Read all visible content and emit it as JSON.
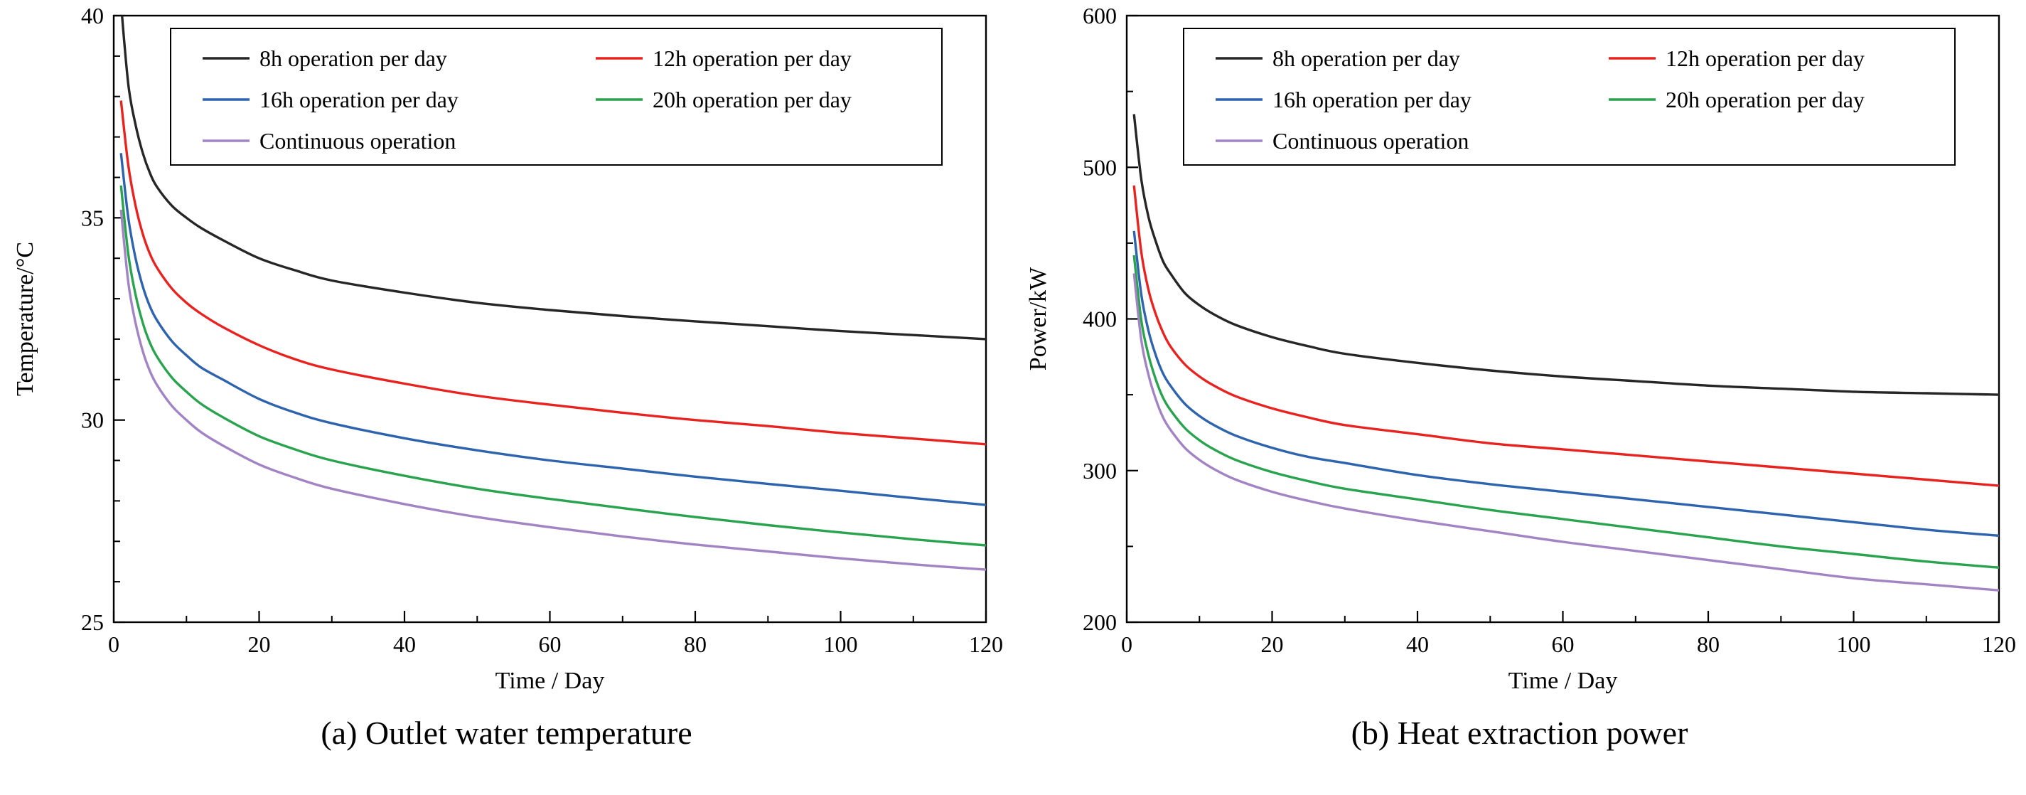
{
  "page": {
    "background": "#ffffff"
  },
  "chart_data": [
    {
      "type": "line",
      "caption": "(a) Outlet water temperature",
      "xlabel": "Time / Day",
      "ylabel": "Temperature/°C",
      "xlim": [
        0,
        120
      ],
      "ylim": [
        25,
        40
      ],
      "x_ticks": [
        0,
        20,
        40,
        60,
        80,
        100,
        120
      ],
      "y_ticks": [
        25,
        30,
        35,
        40
      ],
      "x_minor_step": 10,
      "y_minor_step": 1,
      "grid": false,
      "legend_position": "top-inside",
      "x": [
        1,
        2,
        3,
        4,
        5,
        6,
        8,
        10,
        12,
        15,
        20,
        25,
        30,
        40,
        50,
        60,
        70,
        80,
        90,
        100,
        110,
        120
      ],
      "series": [
        {
          "name": "8h operation per day",
          "color": "#262626",
          "values": [
            40.3,
            38.3,
            37.3,
            36.6,
            36.1,
            35.75,
            35.3,
            35.0,
            34.75,
            34.45,
            34.0,
            33.7,
            33.45,
            33.15,
            32.9,
            32.72,
            32.57,
            32.44,
            32.32,
            32.2,
            32.1,
            32.0
          ]
        },
        {
          "name": "12h operation per day",
          "color": "#e8231f",
          "values": [
            37.9,
            36.3,
            35.3,
            34.6,
            34.1,
            33.75,
            33.25,
            32.9,
            32.63,
            32.3,
            31.85,
            31.5,
            31.25,
            30.9,
            30.6,
            30.38,
            30.18,
            30.0,
            29.85,
            29.68,
            29.54,
            29.4
          ]
        },
        {
          "name": "16h operation per day",
          "color": "#2e63ae",
          "values": [
            36.6,
            35.0,
            34.0,
            33.3,
            32.8,
            32.45,
            31.95,
            31.6,
            31.3,
            31.0,
            30.52,
            30.18,
            29.92,
            29.55,
            29.25,
            29.0,
            28.8,
            28.6,
            28.42,
            28.25,
            28.07,
            27.9
          ]
        },
        {
          "name": "20h operation per day",
          "color": "#2aa34f",
          "values": [
            35.8,
            34.1,
            33.1,
            32.4,
            31.9,
            31.55,
            31.05,
            30.7,
            30.4,
            30.07,
            29.6,
            29.27,
            29.0,
            28.62,
            28.3,
            28.05,
            27.82,
            27.6,
            27.4,
            27.22,
            27.05,
            26.9
          ]
        },
        {
          "name": "Continuous operation",
          "color": "#a284c4",
          "values": [
            35.2,
            33.4,
            32.4,
            31.7,
            31.2,
            30.85,
            30.35,
            30.0,
            29.7,
            29.37,
            28.9,
            28.57,
            28.3,
            27.92,
            27.6,
            27.35,
            27.12,
            26.92,
            26.75,
            26.58,
            26.43,
            26.3
          ]
        }
      ]
    },
    {
      "type": "line",
      "caption": "(b) Heat extraction power",
      "xlabel": "Time / Day",
      "ylabel": "Power/kW",
      "xlim": [
        0,
        120
      ],
      "ylim": [
        200,
        600
      ],
      "x_ticks": [
        0,
        20,
        40,
        60,
        80,
        100,
        120
      ],
      "y_ticks": [
        200,
        300,
        400,
        500,
        600
      ],
      "x_minor_step": 10,
      "y_minor_step": 50,
      "grid": false,
      "legend_position": "top-inside",
      "x": [
        1,
        2,
        3,
        4,
        5,
        6,
        8,
        10,
        12,
        15,
        20,
        25,
        30,
        40,
        50,
        60,
        70,
        80,
        90,
        100,
        110,
        120
      ],
      "series": [
        {
          "name": "8h operation per day",
          "color": "#262626",
          "values": [
            535,
            492,
            467,
            451,
            438,
            430,
            417,
            409,
            403,
            396,
            388,
            382,
            377,
            371,
            366,
            362,
            359,
            356,
            354,
            352,
            351,
            350
          ]
        },
        {
          "name": "12h operation per day",
          "color": "#e8231f",
          "values": [
            488,
            444,
            419,
            403,
            391,
            382,
            370,
            362,
            356,
            349,
            341,
            335,
            330,
            324,
            318,
            314,
            310,
            306,
            302,
            298,
            294,
            290
          ]
        },
        {
          "name": "16h operation per day",
          "color": "#2e63ae",
          "values": [
            458,
            416,
            392,
            376,
            364,
            356,
            344,
            336,
            330,
            323,
            315,
            309,
            305,
            297,
            291,
            286,
            281,
            276,
            271,
            266,
            261,
            257
          ]
        },
        {
          "name": "20h operation per day",
          "color": "#2aa34f",
          "values": [
            442,
            399,
            376,
            360,
            348,
            340,
            328,
            320,
            314,
            307,
            299,
            293,
            288,
            281,
            274,
            268,
            262,
            256,
            250,
            245,
            240,
            236
          ]
        },
        {
          "name": "Continuous operation",
          "color": "#a284c4",
          "values": [
            430,
            386,
            363,
            347,
            335,
            327,
            315,
            307,
            301,
            294,
            286,
            280,
            275,
            267,
            260,
            253,
            247,
            241,
            235,
            229,
            225,
            221
          ]
        }
      ]
    }
  ]
}
